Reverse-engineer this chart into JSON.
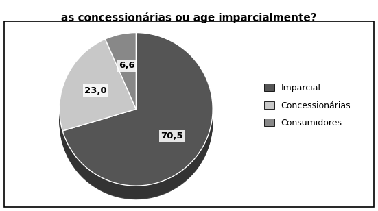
{
  "title": "as concessionárias ou age imparcialmente?",
  "title_fontsize": 11,
  "slices": [
    70.5,
    23.0,
    6.6
  ],
  "labels": [
    "Imparcial",
    "Concessionárias",
    "Consumidores"
  ],
  "colors": [
    "#555555",
    "#c8c8c8",
    "#888888"
  ],
  "shadow_color": "#333333",
  "startangle": 90,
  "pct_labels": [
    "70,5",
    "23,0",
    "6,6"
  ],
  "legend_labels": [
    "Imparcial",
    "Concessionárias",
    "Consumidores"
  ],
  "legend_colors": [
    "#555555",
    "#c8c8c8",
    "#888888"
  ],
  "background_color": "#ffffff"
}
